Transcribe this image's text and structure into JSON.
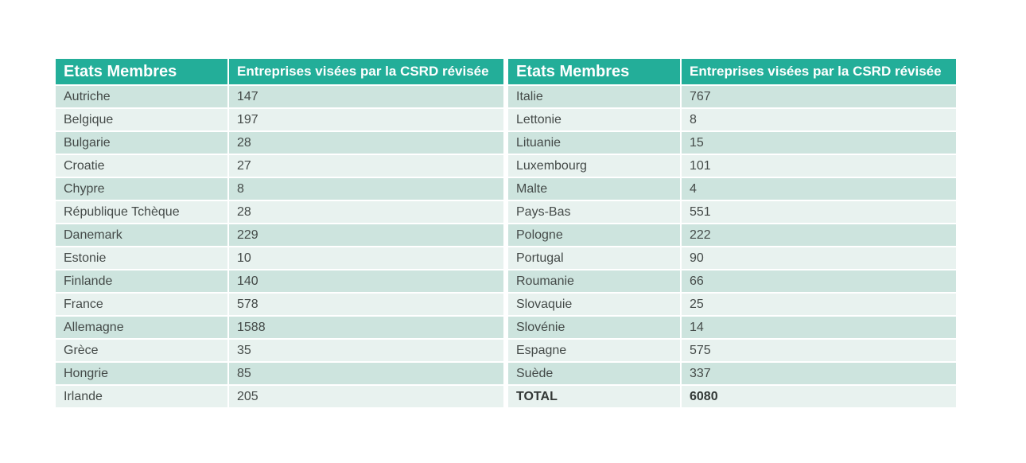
{
  "header": {
    "country_col": "Etats Membres",
    "count_col": "Entreprises visées par la CSRD révisée"
  },
  "left_rows": [
    {
      "country": "Autriche",
      "count": "147"
    },
    {
      "country": "Belgique",
      "count": "197"
    },
    {
      "country": "Bulgarie",
      "count": "28"
    },
    {
      "country": "Croatie",
      "count": "27"
    },
    {
      "country": "Chypre",
      "count": "8"
    },
    {
      "country": "République Tchèque",
      "count": "28"
    },
    {
      "country": "Danemark",
      "count": "229"
    },
    {
      "country": "Estonie",
      "count": "10"
    },
    {
      "country": "Finlande",
      "count": "140"
    },
    {
      "country": "France",
      "count": "578"
    },
    {
      "country": "Allemagne",
      "count": "1588"
    },
    {
      "country": "Grèce",
      "count": "35"
    },
    {
      "country": "Hongrie",
      "count": "85"
    },
    {
      "country": "Irlande",
      "count": "205"
    }
  ],
  "right_rows": [
    {
      "country": "Italie",
      "count": "767"
    },
    {
      "country": "Lettonie",
      "count": "8"
    },
    {
      "country": "Lituanie",
      "count": "15"
    },
    {
      "country": "Luxembourg",
      "count": "101"
    },
    {
      "country": "Malte",
      "count": "4"
    },
    {
      "country": "Pays-Bas",
      "count": "551"
    },
    {
      "country": "Pologne",
      "count": "222"
    },
    {
      "country": "Portugal",
      "count": "90"
    },
    {
      "country": "Roumanie",
      "count": "66"
    },
    {
      "country": "Slovaquie",
      "count": "25"
    },
    {
      "country": "Slovénie",
      "count": "14"
    },
    {
      "country": "Espagne",
      "count": "575"
    },
    {
      "country": "Suède",
      "count": "337"
    }
  ],
  "total": {
    "label": "TOTAL",
    "count": "6080"
  },
  "colors": {
    "header_bg": "#23ae99",
    "row_dark": "#cde4de",
    "row_light": "#e8f2ef"
  }
}
